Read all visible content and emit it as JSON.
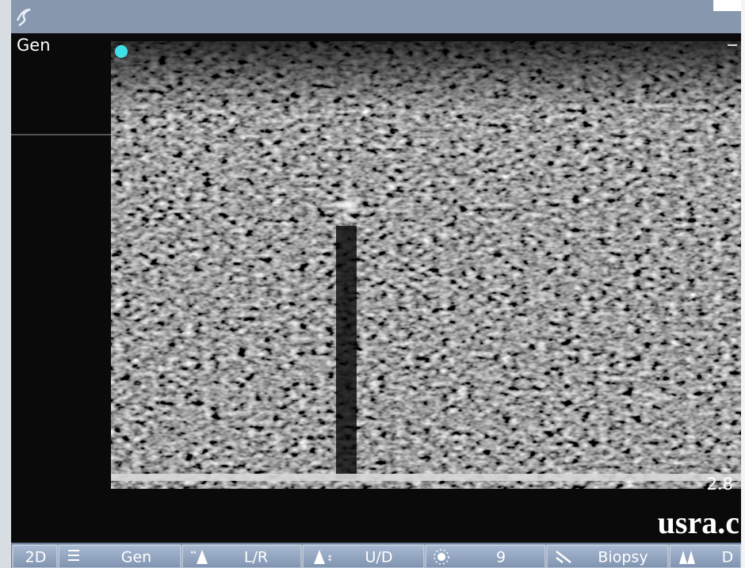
{
  "screen": {
    "mode_label": "Gen",
    "depth": "2.8",
    "watermark": "usra.c",
    "toolbar": [
      "2D",
      "Gen",
      "L/R",
      "U/D",
      "9",
      "Biopsy",
      "D"
    ]
  }
}
